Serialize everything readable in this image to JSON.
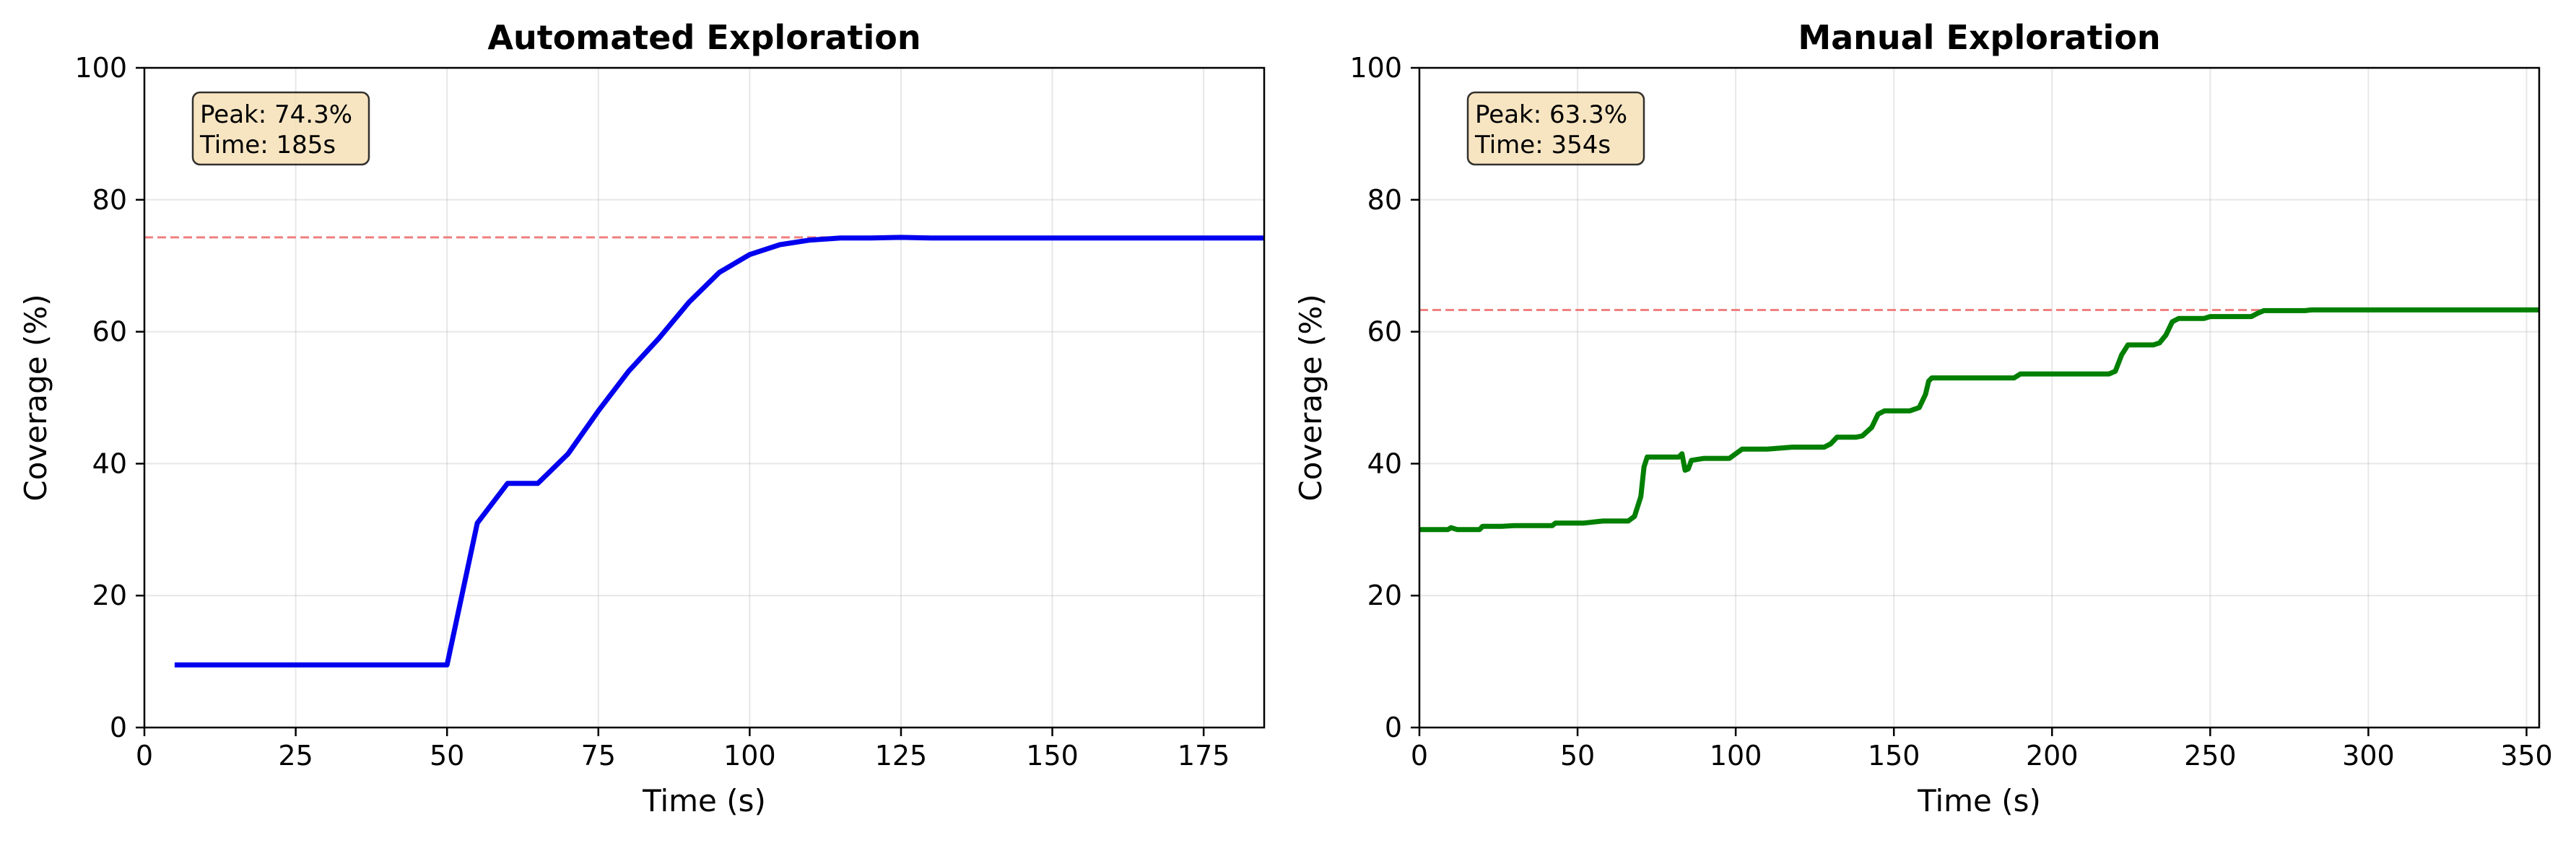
{
  "chart_data": [
    {
      "type": "line",
      "title": "Automated Exploration",
      "xlabel": "Time (s)",
      "ylabel": "Coverage (%)",
      "xlim": [
        0,
        185
      ],
      "ylim": [
        0,
        100
      ],
      "xticks": [
        0,
        25,
        50,
        75,
        100,
        125,
        150,
        175
      ],
      "yticks": [
        0,
        20,
        40,
        60,
        80,
        100
      ],
      "grid": true,
      "reference_line": 74.3,
      "reference_color": "#f08080",
      "annotation": {
        "line1": "Peak: 74.3%",
        "line2": "Time: 185s"
      },
      "series": [
        {
          "color": "#0000ee",
          "x": [
            5,
            10,
            20,
            30,
            40,
            45,
            50,
            55,
            60,
            65,
            70,
            75,
            80,
            85,
            90,
            95,
            100,
            105,
            110,
            115,
            120,
            125,
            130,
            140,
            150,
            160,
            170,
            180,
            185
          ],
          "y": [
            9.5,
            9.5,
            9.5,
            9.5,
            9.5,
            9.5,
            9.5,
            31,
            37,
            37,
            41.5,
            48,
            54,
            59,
            64.5,
            69,
            71.7,
            73.2,
            73.9,
            74.2,
            74.2,
            74.3,
            74.2,
            74.2,
            74.2,
            74.2,
            74.2,
            74.2,
            74.2
          ]
        }
      ]
    },
    {
      "type": "line",
      "title": "Manual Exploration",
      "xlabel": "Time (s)",
      "ylabel": "Coverage (%)",
      "xlim": [
        0,
        354
      ],
      "ylim": [
        0,
        100
      ],
      "xticks": [
        0,
        50,
        100,
        150,
        200,
        250,
        300,
        350
      ],
      "yticks": [
        0,
        20,
        40,
        60,
        80,
        100
      ],
      "grid": true,
      "reference_line": 63.3,
      "reference_color": "#f08080",
      "annotation": {
        "line1": "Peak: 63.3%",
        "line2": "Time: 354s"
      },
      "series": [
        {
          "color": "#007f00",
          "x": [
            0,
            9,
            10,
            12,
            19,
            20,
            26,
            30,
            42,
            43,
            50,
            52,
            58,
            66,
            68,
            70,
            71,
            72,
            73,
            80,
            82,
            83,
            84,
            85,
            86,
            90,
            98,
            100,
            102,
            110,
            118,
            120,
            128,
            130,
            132,
            138,
            140,
            143,
            145,
            147,
            152,
            155,
            158,
            160,
            161,
            162,
            170,
            180,
            188,
            190,
            200,
            210,
            218,
            220,
            222,
            224,
            230,
            232,
            234,
            236,
            238,
            240,
            248,
            250,
            255,
            263,
            265,
            267,
            270,
            280,
            282,
            290,
            300,
            310,
            320,
            330,
            340,
            354
          ],
          "y": [
            30,
            30,
            30.3,
            30,
            30,
            30.5,
            30.5,
            30.6,
            30.6,
            31,
            31,
            31,
            31.3,
            31.3,
            32,
            35,
            39.5,
            41,
            41,
            41,
            41,
            41.5,
            39,
            39.2,
            40.5,
            40.8,
            40.8,
            41.5,
            42.2,
            42.2,
            42.5,
            42.5,
            42.5,
            43,
            44,
            44,
            44.2,
            45.5,
            47.5,
            48,
            48,
            48,
            48.5,
            50.5,
            52.5,
            53,
            53,
            53,
            53,
            53.6,
            53.6,
            53.6,
            53.6,
            54,
            56.5,
            58,
            58,
            58,
            58.3,
            59.5,
            61.5,
            62,
            62,
            62.3,
            62.3,
            62.3,
            62.8,
            63.2,
            63.2,
            63.2,
            63.3,
            63.3,
            63.3,
            63.3,
            63.3,
            63.3,
            63.3,
            63.3
          ]
        }
      ]
    }
  ]
}
